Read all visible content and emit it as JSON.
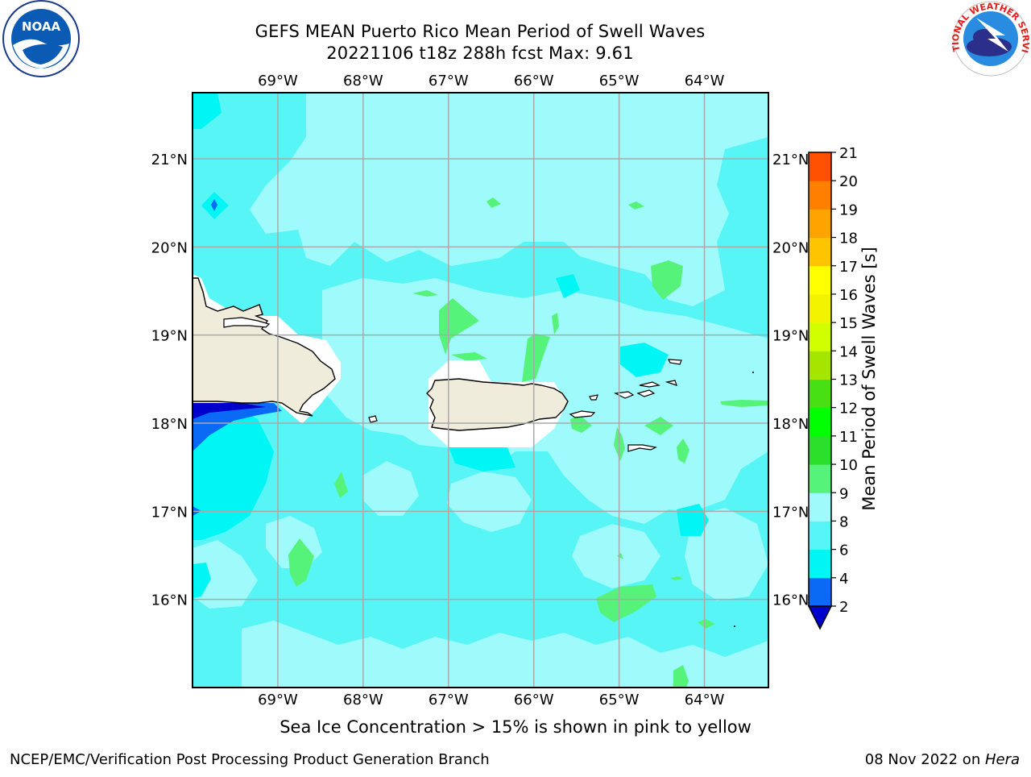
{
  "header": {
    "title_line1": "GEFS MEAN Puerto Rico Mean Period of Swell Waves",
    "title_line2": "20221106 t18z 288h fcst   Max: 9.61"
  },
  "logos": {
    "left": {
      "name": "NOAA",
      "ring_text": "NATIONAL OCEANIC AND ATMOSPHERIC ADMINISTRATION · U.S. DEPARTMENT OF COMMERCE",
      "wordmark": "NOAA"
    },
    "right": {
      "name": "National Weather Service",
      "ring_text": "NATIONAL WEATHER SERVICE"
    }
  },
  "map": {
    "lon_labels": [
      "69°W",
      "68°W",
      "67°W",
      "66°W",
      "65°W",
      "64°W"
    ],
    "lat_labels": [
      "21°N",
      "20°N",
      "19°N",
      "18°N",
      "17°N",
      "16°N"
    ],
    "lon_range": [
      -70.0,
      -63.25
    ],
    "lat_range": [
      15.0,
      21.75
    ],
    "grid": true,
    "land_color": "#efecdc",
    "coast_color": "#000000"
  },
  "colorbar": {
    "label": "Mean Period of Swell Waves [s]",
    "ticks": [
      "2",
      "4",
      "6",
      "8",
      "9",
      "10",
      "11",
      "12",
      "13",
      "14",
      "15",
      "16",
      "17",
      "18",
      "19",
      "20",
      "21"
    ],
    "colors": [
      "#0000cd",
      "#0a6af5",
      "#00f5f5",
      "#57f5f5",
      "#9ffbfb",
      "#55f37a",
      "#2bdf2b",
      "#00ff00",
      "#47e015",
      "#a6e500",
      "#d2ff00",
      "#f3f300",
      "#ffff00",
      "#ffc400",
      "#ffa300",
      "#ff7f00",
      "#ff4f00",
      "#ff1a00"
    ],
    "under_color": "#0000cd"
  },
  "footer": {
    "note": "Sea Ice Concentration > 15% is shown in pink to yellow",
    "branch": "NCEP/EMC/Verification Post Processing Product Generation Branch",
    "date": "08 Nov 2022 on ",
    "host": "Hera"
  }
}
